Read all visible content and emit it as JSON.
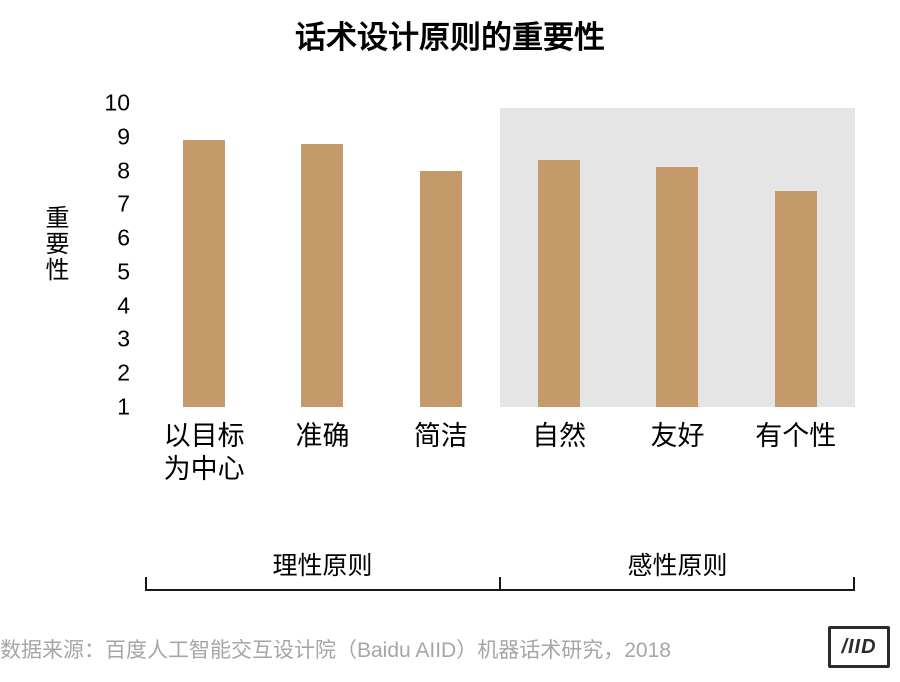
{
  "chart": {
    "title": "话术设计原则的重要性",
    "y_axis_label": "重要性",
    "footer": "数据来源：百度人工智能交互设计院（Baidu AIID）机器话术研究，2018",
    "logo_text": "/IID"
  },
  "chart_data": {
    "type": "bar",
    "title": "话术设计原则的重要性",
    "categories": [
      "以目标为中心",
      "准确",
      "简洁",
      "自然",
      "友好",
      "有个性"
    ],
    "values": [
      8.9,
      8.8,
      8.0,
      8.3,
      8.1,
      7.4
    ],
    "xlabel": "",
    "ylabel": "重要性",
    "ylim": [
      1,
      10
    ],
    "yticks": [
      10,
      9,
      8,
      7,
      6,
      5,
      4,
      3,
      2,
      1
    ],
    "bar_color": "#C49A6B",
    "highlight_panel": {
      "covers_categories": [
        "自然",
        "友好",
        "有个性"
      ],
      "color": "#E5E5E5"
    },
    "groups": [
      {
        "label": "理性原则",
        "categories": [
          "以目标为中心",
          "准确",
          "简洁"
        ]
      },
      {
        "label": "感性原则",
        "categories": [
          "自然",
          "友好",
          "有个性"
        ]
      }
    ],
    "grid": false,
    "legend": false
  }
}
